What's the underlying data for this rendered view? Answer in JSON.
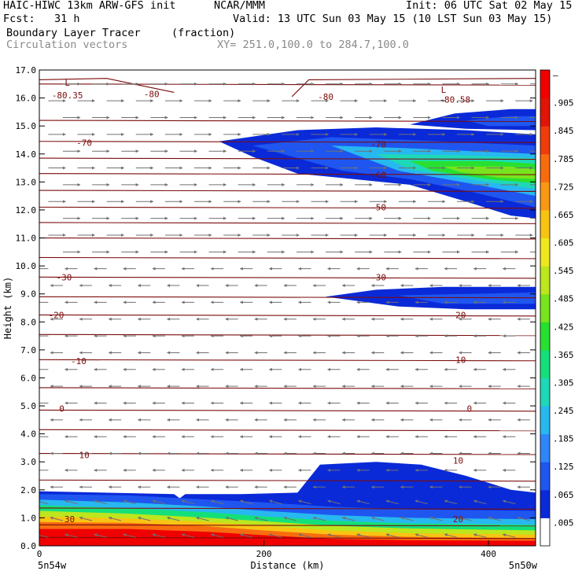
{
  "header": {
    "model": "HAIC-HIWC 13km ARW-GFS init",
    "org": "NCAR/MMM",
    "init": "Init: 06 UTC Sat 02 May 15",
    "fcst": "Fcst:   31 h",
    "valid": "Valid: 13 UTC Sun 03 May 15 (10 LST Sun 03 May 15)",
    "field": "Boundary Layer Tracer",
    "units": "(fraction)",
    "vectors": "Circulation vectors",
    "xy": "XY= 251.0,100.0 to 284.7,100.0"
  },
  "chart_data": {
    "type": "heatmap",
    "xlabel": "Distance (km)",
    "ylabel": "Height (km)",
    "xlim": [
      0,
      442
    ],
    "ylim": [
      0,
      17
    ],
    "x_ticks": [
      0,
      200,
      400
    ],
    "y_ticks": [
      "0.0",
      "1.0",
      "2.0",
      "3.0",
      "4.0",
      "5.0",
      "6.0",
      "7.0",
      "8.0",
      "9.0",
      "10.0",
      "11.0",
      "12.0",
      "13.0",
      "14.0",
      "15.0",
      "16.0",
      "17.0"
    ],
    "x_endpoint_labels": [
      "5n54w",
      "5n50w"
    ],
    "colorbar": {
      "labels": [
        ".005",
        ".065",
        ".125",
        ".185",
        ".245",
        ".305",
        ".365",
        ".425",
        ".485",
        ".545",
        ".605",
        ".665",
        ".725",
        ".785",
        ".845",
        ".905",
        "–"
      ],
      "colors": [
        "#ffffff",
        "#0a2ad8",
        "#1f56f0",
        "#2f86f8",
        "#28b8f0",
        "#1ed8b8",
        "#14e07a",
        "#28e030",
        "#78e41e",
        "#bce61e",
        "#f0e81e",
        "#f8c414",
        "#f89814",
        "#f86c10",
        "#f03c0c",
        "#e01408",
        "#f00000"
      ]
    },
    "isotherms": [
      {
        "label": "-80.35",
        "x": 25,
        "y": 16.1
      },
      {
        "label": "-80",
        "x": 100,
        "y": 16.15
      },
      {
        "label": "-80",
        "x": 255,
        "y": 16.05
      },
      {
        "label": "-80.58",
        "x": 370,
        "y": 15.95
      },
      {
        "label": "-70",
        "x": 40,
        "y": 14.4
      },
      {
        "label": "-70",
        "x": 302,
        "y": 14.35
      },
      {
        "label": "-60",
        "x": 302,
        "y": 13.25
      },
      {
        "label": "-50",
        "x": 302,
        "y": 12.1
      },
      {
        "label": "-30",
        "x": 22,
        "y": 9.6
      },
      {
        "label": "-30",
        "x": 302,
        "y": 9.6
      },
      {
        "label": "-20",
        "x": 15,
        "y": 8.25
      },
      {
        "label": "-20",
        "x": 373,
        "y": 8.25
      },
      {
        "label": "-10",
        "x": 35,
        "y": 6.6
      },
      {
        "label": "-10",
        "x": 373,
        "y": 6.65
      },
      {
        "label": "0",
        "x": 20,
        "y": 4.9
      },
      {
        "label": "0",
        "x": 383,
        "y": 4.9
      },
      {
        "label": "10",
        "x": 40,
        "y": 3.25
      },
      {
        "label": "10",
        "x": 373,
        "y": 3.05
      },
      {
        "label": "20",
        "x": 373,
        "y": 0.95
      },
      {
        "label": "30",
        "x": 27,
        "y": 0.95
      }
    ],
    "low_markers": [
      {
        "label": "L",
        "x": 25,
        "y": 16.55
      },
      {
        "label": "L",
        "x": 360,
        "y": 16.3
      }
    ]
  }
}
